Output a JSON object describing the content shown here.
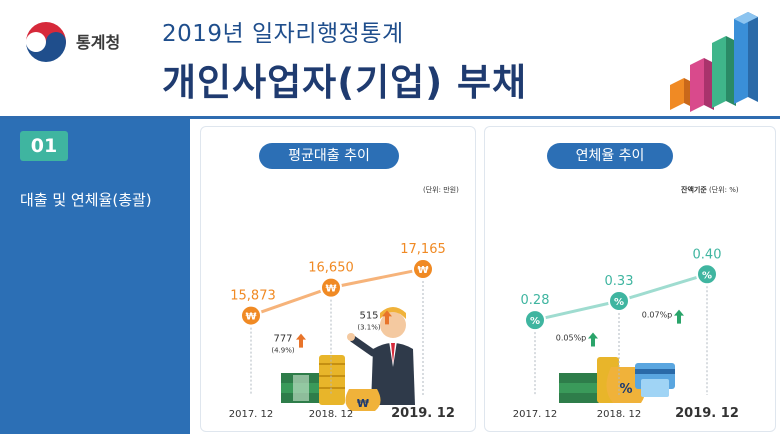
{
  "header": {
    "agency": "통계청",
    "title_top": "2019년 일자리행정통계",
    "title_main": "개인사업자(기업) 부채"
  },
  "sidebar": {
    "section_number": "01",
    "section_label": "대출 및 연체율(총괄)"
  },
  "colors": {
    "orange": "#f08a24",
    "teal": "#3fb5a0",
    "blue": "#2c6fb5",
    "navy": "#1f3b70",
    "up_orange": "#e8742a",
    "up_green": "#2aa46a"
  },
  "chart_data": [
    {
      "type": "line",
      "title": "평균대출 추이",
      "unit": "(단위: 만원)",
      "categories": [
        "2017. 12",
        "2018. 12",
        "2019. 12"
      ],
      "values": [
        15873,
        16650,
        17165
      ],
      "value_labels": [
        "15,873",
        "16,650",
        "17,165"
      ],
      "marker_symbol": "₩",
      "ylim": [
        15000,
        17500
      ],
      "changes": [
        {
          "value": "777",
          "pct": "(4.9%)"
        },
        {
          "value": "515",
          "pct": "(3.1%)"
        }
      ]
    },
    {
      "type": "line",
      "title": "연체율 추이",
      "unit_prefix": "잔액기준",
      "unit": "(단위: %)",
      "categories": [
        "2017. 12",
        "2018. 12",
        "2019. 12"
      ],
      "values": [
        0.28,
        0.33,
        0.4
      ],
      "value_labels": [
        "0.28",
        "0.33",
        "0.40"
      ],
      "marker_symbol": "%",
      "ylim": [
        0.0,
        0.55
      ],
      "changes": [
        {
          "value": "0.05%p"
        },
        {
          "value": "0.07%p"
        }
      ]
    }
  ]
}
